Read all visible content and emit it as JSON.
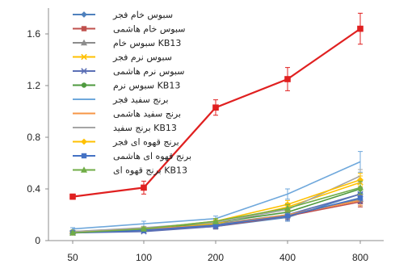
{
  "chart_data": {
    "type": "line",
    "title": "",
    "xlabel": "",
    "ylabel": "",
    "x_categories": [
      "50",
      "100",
      "200",
      "400",
      "800"
    ],
    "y_ticks": [
      0,
      0.4,
      0.8,
      1.2,
      1.6
    ],
    "y_tick_labels": [
      "0",
      "0.4",
      "0.8",
      "1.2",
      "1.6"
    ],
    "ylim": [
      0,
      1.8
    ],
    "grid": false,
    "legend_position": "top-left",
    "series": [
      {
        "name": "سبوس خام فجر",
        "color": "#4f81bd",
        "marker": "diamond",
        "values": [
          0.07,
          0.08,
          0.11,
          0.18,
          0.36
        ],
        "errors": [
          0.01,
          0.01,
          0.02,
          0.03,
          0.05
        ]
      },
      {
        "name": "سبوس خام هاشمی",
        "color": "#c0504d",
        "marker": "square",
        "values": [
          0.06,
          0.08,
          0.11,
          0.19,
          0.3
        ],
        "errors": [
          0.01,
          0.01,
          0.02,
          0.03,
          0.04
        ]
      },
      {
        "name": "سبوس خام KB13",
        "color": "#8c8c8c",
        "marker": "triangle",
        "values": [
          0.07,
          0.09,
          0.13,
          0.2,
          0.32
        ],
        "errors": [
          0.01,
          0.01,
          0.02,
          0.03,
          0.05
        ]
      },
      {
        "name": "سبوس نرم فجر",
        "color": "#ffc000",
        "marker": "x",
        "values": [
          0.06,
          0.09,
          0.13,
          0.26,
          0.45
        ],
        "errors": [
          0.01,
          0.01,
          0.02,
          0.03,
          0.05
        ]
      },
      {
        "name": "سبوس نرم هاشمی",
        "color": "#5b6fb5",
        "marker": "x",
        "values": [
          0.06,
          0.07,
          0.11,
          0.2,
          0.36
        ],
        "errors": [
          0.01,
          0.01,
          0.02,
          0.03,
          0.05
        ]
      },
      {
        "name": "سبوس نرم KB13",
        "color": "#4e9a3e",
        "marker": "circle",
        "values": [
          0.07,
          0.09,
          0.14,
          0.22,
          0.4
        ],
        "errors": [
          0.01,
          0.01,
          0.02,
          0.03,
          0.05
        ]
      },
      {
        "name": "برنج سفید فجر",
        "color": "#6fa8dc",
        "marker": "none",
        "values": [
          0.09,
          0.13,
          0.17,
          0.36,
          0.61
        ],
        "errors": [
          0.01,
          0.02,
          0.02,
          0.04,
          0.08
        ]
      },
      {
        "name": "برنج سفید هاشمی",
        "color": "#f79646",
        "marker": "none",
        "values": [
          0.07,
          0.09,
          0.12,
          0.2,
          0.31
        ],
        "errors": [
          0.01,
          0.01,
          0.02,
          0.03,
          0.04
        ]
      },
      {
        "name": "برنج سفید KB13",
        "color": "#a5a5a5",
        "marker": "none",
        "values": [
          0.07,
          0.1,
          0.14,
          0.24,
          0.5
        ],
        "errors": [
          0.01,
          0.01,
          0.02,
          0.03,
          0.05
        ]
      },
      {
        "name": "برنج قهوه ای فجر",
        "color": "#ffc000",
        "marker": "diamond",
        "values": [
          0.06,
          0.09,
          0.15,
          0.28,
          0.47
        ],
        "errors": [
          0.01,
          0.01,
          0.02,
          0.03,
          0.05
        ]
      },
      {
        "name": "برنج قهوه ای هاشمی",
        "color": "#4472c4",
        "marker": "square",
        "values": [
          0.06,
          0.08,
          0.12,
          0.19,
          0.33
        ],
        "errors": [
          0.01,
          0.01,
          0.02,
          0.03,
          0.04
        ]
      },
      {
        "name": "برنج قهوه ای KB13",
        "color": "#70ad47",
        "marker": "triangle",
        "values": [
          0.06,
          0.09,
          0.15,
          0.25,
          0.41
        ],
        "errors": [
          0.01,
          0.01,
          0.02,
          0.03,
          0.05
        ]
      },
      {
        "name": "",
        "color": "#e02020",
        "marker": "square",
        "values": [
          0.34,
          0.41,
          1.03,
          1.25,
          1.64
        ],
        "errors": [
          0.02,
          0.05,
          0.06,
          0.09,
          0.12
        ]
      }
    ]
  }
}
